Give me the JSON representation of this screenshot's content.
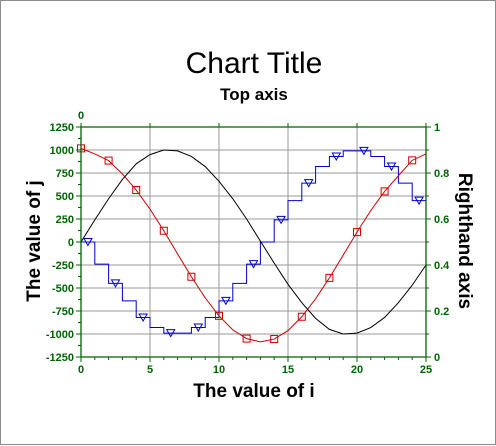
{
  "chart_data": {
    "type": "line",
    "title": "Chart Title",
    "subtitle": "Top axis",
    "xlabel": "The value of i",
    "ylabel": "The value of j",
    "y2label": "Righthand axis",
    "xlim": [
      0,
      25
    ],
    "ylim": [
      -1250,
      1250
    ],
    "y2lim": [
      0,
      1
    ],
    "top_xlim": [
      0,
      25
    ],
    "x_ticks": [
      "0",
      "5",
      "10",
      "15",
      "20",
      "25"
    ],
    "y_ticks": [
      "1250",
      "1000",
      "750",
      "500",
      "250",
      "0",
      "-250",
      "-500",
      "-750",
      "-1000",
      "-1250"
    ],
    "y2_ticks": [
      "1",
      "0.8",
      "0.6",
      "0.4",
      "0.2",
      "0"
    ],
    "top_ticks": [
      "0"
    ],
    "grid": true,
    "series": [
      {
        "color": "#0000cc",
        "style": "step",
        "marker": "triangle-down",
        "axis": "left",
        "x": [
          0,
          1,
          2,
          3,
          4,
          5,
          6,
          7,
          8,
          9,
          10,
          11,
          12,
          13,
          14,
          15,
          16,
          17,
          18,
          19,
          20,
          21,
          22,
          23,
          24,
          25
        ],
        "y": [
          0,
          -240,
          -450,
          -640,
          -820,
          -930,
          -990,
          -990,
          -930,
          -820,
          -640,
          -450,
          -240,
          0,
          240,
          450,
          640,
          820,
          930,
          990,
          990,
          930,
          820,
          640,
          450,
          240
        ]
      },
      {
        "color": "#cc0000",
        "style": "line",
        "marker": "square",
        "axis": "right",
        "x": [
          0,
          1,
          2,
          3,
          4,
          5,
          6,
          7,
          8,
          9,
          10,
          11,
          12,
          13,
          14,
          15,
          16,
          17,
          18,
          19,
          20,
          21,
          22,
          23,
          24,
          25
        ],
        "y": [
          0.907,
          0.883,
          0.854,
          0.796,
          0.726,
          0.643,
          0.549,
          0.448,
          0.349,
          0.257,
          0.179,
          0.118,
          0.08,
          0.066,
          0.078,
          0.115,
          0.175,
          0.253,
          0.344,
          0.443,
          0.543,
          0.637,
          0.72,
          0.788,
          0.855,
          0.883
        ],
        "marker_x": [
          0,
          2,
          4,
          6,
          8,
          10,
          12,
          14,
          16,
          18,
          20,
          22,
          24
        ]
      },
      {
        "color": "#000000",
        "style": "line",
        "marker": "none",
        "axis": "left",
        "x": [
          0,
          1,
          2,
          3,
          4,
          5,
          6,
          7,
          8,
          9,
          10,
          11,
          12,
          13,
          14,
          15,
          16,
          17,
          18,
          19,
          20,
          21,
          22,
          23,
          24,
          25
        ],
        "y": [
          0,
          240,
          470,
          680,
          850,
          950,
          1000,
          990,
          930,
          820,
          660,
          470,
          250,
          10,
          -230,
          -460,
          -660,
          -830,
          -950,
          -1000,
          -990,
          -930,
          -820,
          -660,
          -470,
          -250
        ]
      }
    ]
  }
}
